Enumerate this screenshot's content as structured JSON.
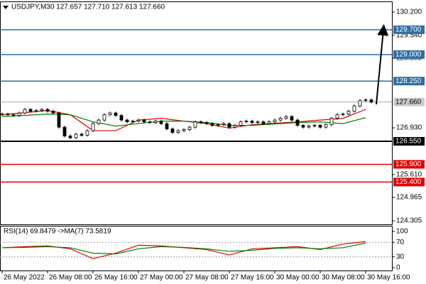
{
  "chart_data": {
    "type": "candlestick",
    "title": "USDJPY,M30  127.657 127.710 127.613 127.660",
    "closes": [
      127.32,
      127.3,
      127.28,
      127.35,
      127.45,
      127.4,
      127.42,
      127.45,
      127.4,
      127.35,
      126.95,
      126.7,
      126.65,
      126.75,
      126.72,
      126.85,
      127.05,
      127.15,
      127.3,
      127.35,
      127.28,
      127.15,
      127.1,
      127.12,
      127.15,
      127.1,
      127.08,
      127.12,
      127.05,
      126.9,
      126.8,
      126.85,
      126.88,
      126.95,
      127.1,
      127.08,
      127.05,
      127.0,
      127.02,
      127.05,
      126.95,
      127.0,
      127.1,
      127.12,
      127.08,
      127.1,
      127.05,
      127.1,
      127.15,
      127.2,
      127.25,
      127.15,
      127.0,
      126.95,
      126.98,
      127.0,
      126.95,
      127.02,
      127.2,
      127.3,
      127.32,
      127.4,
      127.55,
      127.7,
      127.72,
      127.66
    ],
    "series": [
      {
        "color": "#e00000",
        "x": [
          0,
          4,
          8,
          12,
          16,
          20,
          24,
          28,
          32,
          36,
          40,
          44,
          48,
          52,
          56,
          60,
          64
        ],
        "values": [
          127.3,
          127.36,
          127.42,
          127.3,
          126.85,
          126.85,
          127.15,
          127.2,
          127.12,
          127.05,
          126.92,
          127.02,
          127.06,
          127.1,
          127.15,
          127.2,
          127.45
        ]
      },
      {
        "color": "#008000",
        "x": [
          0,
          4,
          8,
          12,
          16,
          20,
          24,
          28,
          32,
          36,
          40,
          44,
          48,
          52,
          56,
          60,
          64
        ],
        "values": [
          127.25,
          127.28,
          127.32,
          127.3,
          127.1,
          126.98,
          127.05,
          127.12,
          127.12,
          127.08,
          127.0,
          127.0,
          127.04,
          127.08,
          127.1,
          127.05,
          127.22
        ]
      }
    ],
    "xlim": [
      -0.375,
      68.625
    ],
    "xticks": [
      {
        "value": 0,
        "label": "26 May 2022"
      },
      {
        "value": 8,
        "label": "26 May 08:00"
      },
      {
        "value": 16,
        "label": "26 May 16:00"
      },
      {
        "value": 24,
        "label": "27 May 00:00"
      },
      {
        "value": 32,
        "label": "27 May 08:00"
      },
      {
        "value": 40,
        "label": "27 May 16:00"
      },
      {
        "value": 48,
        "label": "30 May 00:00"
      },
      {
        "value": 56,
        "label": "30 May 08:00"
      },
      {
        "value": 64,
        "label": "30 May 16:00"
      }
    ],
    "ylim": [
      124.205,
      130.48
    ],
    "yticks": [
      {
        "value": 130.2,
        "label": "130.200"
      },
      {
        "value": 129.54,
        "label": "129.540"
      },
      {
        "value": 128.895,
        "label": "128.895"
      },
      {
        "value": 126.93,
        "label": "126.930"
      },
      {
        "value": 125.61,
        "label": "125.610"
      },
      {
        "value": 124.965,
        "label": "124.965"
      },
      {
        "value": 124.305,
        "label": "124.305"
      }
    ],
    "levels": [
      {
        "value": 129.7,
        "label": "129.700",
        "color": "#2e6da4"
      },
      {
        "value": 129.0,
        "label": "129.000",
        "color": "#2e6da4"
      },
      {
        "value": 128.25,
        "label": "128.250",
        "color": "#2e6da4"
      },
      {
        "value": 126.55,
        "label": "126.550",
        "color": "#000000"
      },
      {
        "value": 125.9,
        "label": "125.900",
        "color": "#e00000"
      },
      {
        "value": 125.4,
        "label": "125.400",
        "color": "#e00000"
      }
    ],
    "current": {
      "value": 127.66,
      "label": "127.660"
    },
    "rsi": {
      "title": "RSI(14) 69.8479 ->MA(7) 73.5819",
      "ylim": [
        -7.7,
        113.5
      ],
      "yticks": [
        0,
        30,
        70,
        100
      ],
      "series": [
        {
          "color": "#e00000",
          "x": [
            0,
            4,
            8,
            12,
            16,
            20,
            24,
            28,
            32,
            36,
            40,
            44,
            48,
            52,
            56,
            60,
            64
          ],
          "values": [
            55,
            58,
            60,
            52,
            25,
            40,
            62,
            60,
            55,
            50,
            35,
            52,
            55,
            58,
            50,
            65,
            72
          ]
        },
        {
          "color": "#008000",
          "x": [
            0,
            4,
            8,
            12,
            16,
            20,
            24,
            28,
            32,
            36,
            40,
            44,
            48,
            52,
            56,
            60,
            64
          ],
          "values": [
            55,
            56,
            58,
            55,
            40,
            38,
            52,
            58,
            56,
            52,
            45,
            48,
            53,
            55,
            52,
            55,
            68
          ]
        }
      ]
    }
  }
}
